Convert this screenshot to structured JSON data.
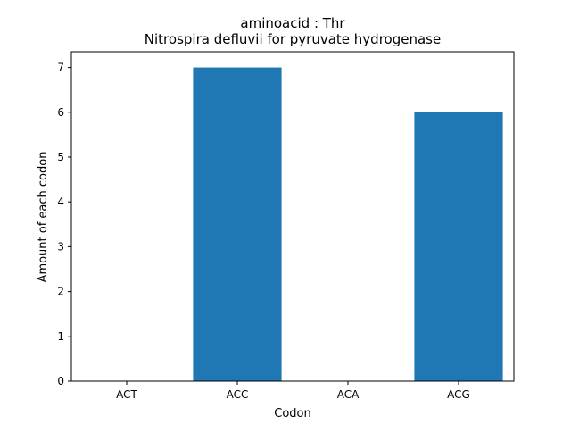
{
  "chart_data": {
    "type": "bar",
    "title": "aminoacid : Thr",
    "subtitle": "Nitrospira defluvii for pyruvate hydrogenase",
    "xlabel": "Codon",
    "ylabel": "Amount of each codon",
    "categories": [
      "ACT",
      "ACC",
      "ACA",
      "ACG"
    ],
    "values": [
      0,
      7,
      0,
      6
    ],
    "ylim": [
      0,
      7.35
    ],
    "yticks": [
      "0",
      "1",
      "2",
      "3",
      "4",
      "5",
      "6",
      "7"
    ],
    "grid": false,
    "bar_color": "#1f77b4"
  }
}
